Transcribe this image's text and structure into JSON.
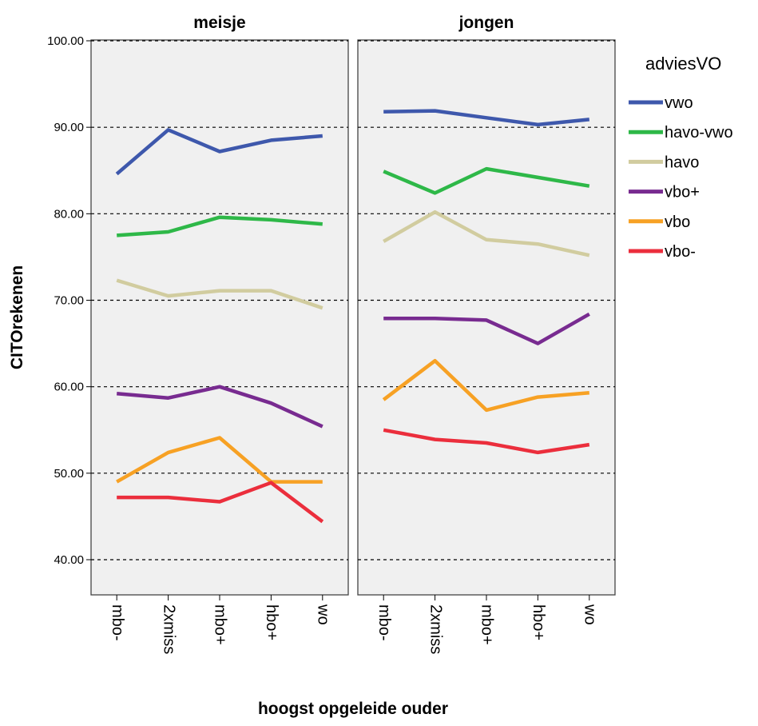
{
  "chart_data": {
    "type": "line",
    "ylabel": "CITOrekenen",
    "xlabel": "hoogst opgeleide ouder",
    "ylim": [
      40,
      100
    ],
    "yticks": [
      "40.00",
      "50.00",
      "60.00",
      "70.00",
      "80.00",
      "90.00",
      "100.00"
    ],
    "categories": [
      "mbo-",
      "2xmiss",
      "mbo+",
      "hbo+",
      "wo"
    ],
    "grid": "dashed horizontal lines at y ticks",
    "legend_title": "adviesVO",
    "legend_position": "right",
    "panels": [
      {
        "title": "meisje",
        "series": [
          {
            "name": "vwo",
            "values": [
              84.6,
              89.7,
              87.2,
              88.5,
              89.0
            ]
          },
          {
            "name": "havo-vwo",
            "values": [
              77.5,
              77.9,
              79.6,
              79.3,
              78.8
            ]
          },
          {
            "name": "havo",
            "values": [
              72.3,
              70.5,
              71.1,
              71.1,
              69.1
            ]
          },
          {
            "name": "vbo+",
            "values": [
              59.2,
              58.7,
              60.0,
              58.1,
              55.4
            ]
          },
          {
            "name": "vbo",
            "values": [
              49.0,
              52.4,
              54.1,
              49.0,
              49.0
            ]
          },
          {
            "name": "vbo-",
            "values": [
              47.2,
              47.2,
              46.7,
              48.9,
              44.4
            ]
          }
        ]
      },
      {
        "title": "jongen",
        "series": [
          {
            "name": "vwo",
            "values": [
              91.8,
              91.9,
              91.1,
              90.3,
              90.9
            ]
          },
          {
            "name": "havo-vwo",
            "values": [
              84.9,
              82.4,
              85.2,
              84.2,
              83.2
            ]
          },
          {
            "name": "havo",
            "values": [
              76.8,
              80.2,
              77.0,
              76.5,
              75.2
            ]
          },
          {
            "name": "vbo+",
            "values": [
              67.9,
              67.9,
              67.7,
              65.0,
              68.4
            ]
          },
          {
            "name": "vbo",
            "values": [
              58.5,
              63.0,
              57.3,
              58.8,
              59.3
            ]
          },
          {
            "name": "vbo-",
            "values": [
              55.0,
              53.9,
              53.5,
              52.4,
              53.3
            ]
          }
        ]
      }
    ],
    "colors": {
      "vwo": "#3e58ac",
      "havo-vwo": "#2eb848",
      "havo": "#d1cc9f",
      "vbo+": "#782b90",
      "vbo": "#f7a124",
      "vbo-": "#eb2e3c"
    },
    "panel_background": "#f0f0f0"
  }
}
